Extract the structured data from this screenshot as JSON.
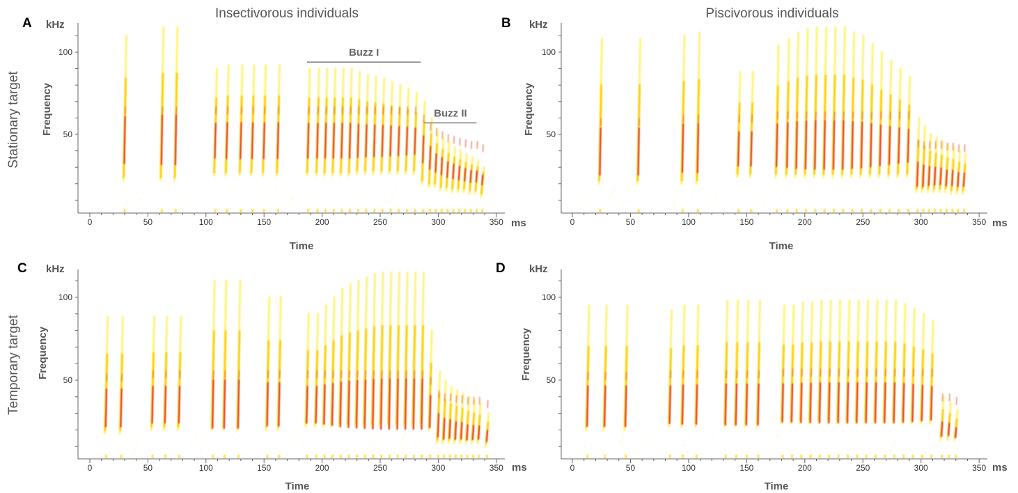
{
  "figure": {
    "column_titles": [
      "Insectivorous individuals",
      "Piscivorous individuals"
    ],
    "row_titles": [
      "Stationary target",
      "Temporary target"
    ]
  },
  "chart_data": [
    {
      "panel": "A",
      "type": "heatmap",
      "subtype": "spectrogram",
      "row": 0,
      "col": 0,
      "xlabel": "Time",
      "xunit": "ms",
      "ylabel": "Frequency",
      "yunit": "kHz",
      "xlim": [
        -10,
        355
      ],
      "ylim": [
        5,
        115
      ],
      "xticks": [
        0,
        50,
        100,
        150,
        200,
        250,
        300,
        350
      ],
      "yticks": [
        50,
        100
      ],
      "calls": [
        {
          "t": 30,
          "f_hi": 110,
          "f_lo": 22,
          "peak": 45
        },
        {
          "t": 62,
          "f_hi": 115,
          "f_lo": 22,
          "peak": 45
        },
        {
          "t": 74,
          "f_hi": 115,
          "f_lo": 22,
          "peak": 45
        },
        {
          "t": 108,
          "f_hi": 90,
          "f_lo": 25,
          "peak": 45
        },
        {
          "t": 118,
          "f_hi": 92,
          "f_lo": 25,
          "peak": 45
        },
        {
          "t": 130,
          "f_hi": 92,
          "f_lo": 25,
          "peak": 45
        },
        {
          "t": 140,
          "f_hi": 92,
          "f_lo": 25,
          "peak": 45
        },
        {
          "t": 150,
          "f_hi": 92,
          "f_lo": 25,
          "peak": 45
        },
        {
          "t": 162,
          "f_hi": 92,
          "f_lo": 25,
          "peak": 45
        },
        {
          "t": 188,
          "f_hi": 90,
          "f_lo": 25,
          "peak": 45
        },
        {
          "t": 196,
          "f_hi": 90,
          "f_lo": 25,
          "peak": 45
        },
        {
          "t": 203,
          "f_hi": 90,
          "f_lo": 25,
          "peak": 45
        },
        {
          "t": 210,
          "f_hi": 90,
          "f_lo": 25,
          "peak": 45
        },
        {
          "t": 217,
          "f_hi": 90,
          "f_lo": 25,
          "peak": 45
        },
        {
          "t": 224,
          "f_hi": 90,
          "f_lo": 25,
          "peak": 45
        },
        {
          "t": 231,
          "f_hi": 88,
          "f_lo": 26,
          "peak": 45
        },
        {
          "t": 238,
          "f_hi": 86,
          "f_lo": 26,
          "peak": 45
        },
        {
          "t": 245,
          "f_hi": 85,
          "f_lo": 26,
          "peak": 45
        },
        {
          "t": 252,
          "f_hi": 84,
          "f_lo": 26,
          "peak": 45
        },
        {
          "t": 259,
          "f_hi": 82,
          "f_lo": 26,
          "peak": 45
        },
        {
          "t": 266,
          "f_hi": 80,
          "f_lo": 26,
          "peak": 45
        },
        {
          "t": 273,
          "f_hi": 78,
          "f_lo": 26,
          "peak": 45
        },
        {
          "t": 280,
          "f_hi": 75,
          "f_lo": 26,
          "peak": 45
        },
        {
          "t": 287,
          "f_hi": 70,
          "f_lo": 20,
          "peak": 40
        },
        {
          "t": 293,
          "f_hi": 60,
          "f_lo": 18,
          "peak": 35
        },
        {
          "t": 298,
          "f_hi": 52,
          "f_lo": 18,
          "peak": 32
        },
        {
          "t": 303,
          "f_hi": 48,
          "f_lo": 16,
          "peak": 30
        },
        {
          "t": 308,
          "f_hi": 45,
          "f_lo": 16,
          "peak": 28
        },
        {
          "t": 313,
          "f_hi": 42,
          "f_lo": 15,
          "peak": 27
        },
        {
          "t": 318,
          "f_hi": 40,
          "f_lo": 15,
          "peak": 26
        },
        {
          "t": 323,
          "f_hi": 38,
          "f_lo": 15,
          "peak": 25
        },
        {
          "t": 328,
          "f_hi": 36,
          "f_lo": 14,
          "peak": 24
        },
        {
          "t": 333,
          "f_hi": 34,
          "f_lo": 14,
          "peak": 24
        },
        {
          "t": 338,
          "f_hi": 30,
          "f_lo": 12,
          "peak": 22
        }
      ],
      "annotations": [
        {
          "label": "Buzz I",
          "x_start": 187,
          "x_end": 285,
          "y": 94
        },
        {
          "label": "Buzz II",
          "x_start": 288,
          "x_end": 333,
          "y": 57
        }
      ]
    },
    {
      "panel": "B",
      "type": "heatmap",
      "subtype": "spectrogram",
      "row": 0,
      "col": 1,
      "xlabel": "Time",
      "xunit": "ms",
      "ylabel": "Frequency",
      "yunit": "kHz",
      "xlim": [
        -10,
        355
      ],
      "ylim": [
        5,
        115
      ],
      "xticks": [
        0,
        50,
        100,
        150,
        200,
        250,
        300,
        350
      ],
      "yticks": [
        50,
        100
      ],
      "calls": [
        {
          "t": 24,
          "f_hi": 108,
          "f_lo": 20,
          "peak": 38
        },
        {
          "t": 57,
          "f_hi": 108,
          "f_lo": 20,
          "peak": 38
        },
        {
          "t": 95,
          "f_hi": 110,
          "f_lo": 20,
          "peak": 40
        },
        {
          "t": 108,
          "f_hi": 112,
          "f_lo": 20,
          "peak": 40
        },
        {
          "t": 143,
          "f_hi": 88,
          "f_lo": 24,
          "peak": 40
        },
        {
          "t": 154,
          "f_hi": 88,
          "f_lo": 24,
          "peak": 40
        },
        {
          "t": 176,
          "f_hi": 104,
          "f_lo": 24,
          "peak": 42
        },
        {
          "t": 185,
          "f_hi": 108,
          "f_lo": 24,
          "peak": 42
        },
        {
          "t": 193,
          "f_hi": 112,
          "f_lo": 24,
          "peak": 42
        },
        {
          "t": 201,
          "f_hi": 114,
          "f_lo": 24,
          "peak": 42
        },
        {
          "t": 209,
          "f_hi": 115,
          "f_lo": 24,
          "peak": 42
        },
        {
          "t": 217,
          "f_hi": 115,
          "f_lo": 24,
          "peak": 42
        },
        {
          "t": 225,
          "f_hi": 115,
          "f_lo": 24,
          "peak": 42
        },
        {
          "t": 233,
          "f_hi": 115,
          "f_lo": 24,
          "peak": 42
        },
        {
          "t": 241,
          "f_hi": 112,
          "f_lo": 24,
          "peak": 42
        },
        {
          "t": 249,
          "f_hi": 110,
          "f_lo": 24,
          "peak": 42
        },
        {
          "t": 257,
          "f_hi": 105,
          "f_lo": 24,
          "peak": 42
        },
        {
          "t": 265,
          "f_hi": 100,
          "f_lo": 24,
          "peak": 42
        },
        {
          "t": 273,
          "f_hi": 95,
          "f_lo": 24,
          "peak": 42
        },
        {
          "t": 281,
          "f_hi": 90,
          "f_lo": 24,
          "peak": 42
        },
        {
          "t": 289,
          "f_hi": 85,
          "f_lo": 24,
          "peak": 42
        },
        {
          "t": 297,
          "f_hi": 60,
          "f_lo": 15,
          "peak": 25
        },
        {
          "t": 302,
          "f_hi": 55,
          "f_lo": 15,
          "peak": 24
        },
        {
          "t": 307,
          "f_hi": 50,
          "f_lo": 15,
          "peak": 24
        },
        {
          "t": 312,
          "f_hi": 48,
          "f_lo": 15,
          "peak": 24
        },
        {
          "t": 317,
          "f_hi": 46,
          "f_lo": 15,
          "peak": 24
        },
        {
          "t": 322,
          "f_hi": 44,
          "f_lo": 15,
          "peak": 23
        },
        {
          "t": 327,
          "f_hi": 42,
          "f_lo": 14,
          "peak": 23
        },
        {
          "t": 332,
          "f_hi": 40,
          "f_lo": 14,
          "peak": 22
        },
        {
          "t": 337,
          "f_hi": 38,
          "f_lo": 14,
          "peak": 22
        }
      ],
      "annotations": []
    },
    {
      "panel": "C",
      "type": "heatmap",
      "subtype": "spectrogram",
      "row": 1,
      "col": 0,
      "xlabel": "Time",
      "xunit": "ms",
      "ylabel": "Frequency",
      "yunit": "kHz",
      "xlim": [
        -10,
        355
      ],
      "ylim": [
        5,
        115
      ],
      "xticks": [
        0,
        50,
        100,
        150,
        200,
        250,
        300,
        350
      ],
      "yticks": [
        50,
        100
      ],
      "calls": [
        {
          "t": 14,
          "f_hi": 88,
          "f_lo": 18,
          "peak": 32
        },
        {
          "t": 27,
          "f_hi": 88,
          "f_lo": 18,
          "peak": 32
        },
        {
          "t": 54,
          "f_hi": 88,
          "f_lo": 20,
          "peak": 34
        },
        {
          "t": 65,
          "f_hi": 88,
          "f_lo": 20,
          "peak": 34
        },
        {
          "t": 77,
          "f_hi": 88,
          "f_lo": 20,
          "peak": 34
        },
        {
          "t": 106,
          "f_hi": 110,
          "f_lo": 20,
          "peak": 34
        },
        {
          "t": 116,
          "f_hi": 110,
          "f_lo": 20,
          "peak": 34
        },
        {
          "t": 128,
          "f_hi": 110,
          "f_lo": 20,
          "peak": 34
        },
        {
          "t": 153,
          "f_hi": 100,
          "f_lo": 20,
          "peak": 34
        },
        {
          "t": 163,
          "f_hi": 100,
          "f_lo": 20,
          "peak": 34
        },
        {
          "t": 187,
          "f_hi": 90,
          "f_lo": 22,
          "peak": 34
        },
        {
          "t": 195,
          "f_hi": 90,
          "f_lo": 22,
          "peak": 34
        },
        {
          "t": 202,
          "f_hi": 95,
          "f_lo": 22,
          "peak": 34
        },
        {
          "t": 209,
          "f_hi": 100,
          "f_lo": 22,
          "peak": 34
        },
        {
          "t": 216,
          "f_hi": 105,
          "f_lo": 22,
          "peak": 34
        },
        {
          "t": 223,
          "f_hi": 108,
          "f_lo": 22,
          "peak": 34
        },
        {
          "t": 230,
          "f_hi": 110,
          "f_lo": 22,
          "peak": 34
        },
        {
          "t": 237,
          "f_hi": 112,
          "f_lo": 22,
          "peak": 34
        },
        {
          "t": 244,
          "f_hi": 114,
          "f_lo": 22,
          "peak": 34
        },
        {
          "t": 251,
          "f_hi": 115,
          "f_lo": 22,
          "peak": 34
        },
        {
          "t": 258,
          "f_hi": 115,
          "f_lo": 22,
          "peak": 34
        },
        {
          "t": 265,
          "f_hi": 115,
          "f_lo": 22,
          "peak": 34
        },
        {
          "t": 272,
          "f_hi": 115,
          "f_lo": 22,
          "peak": 34
        },
        {
          "t": 279,
          "f_hi": 115,
          "f_lo": 22,
          "peak": 34
        },
        {
          "t": 286,
          "f_hi": 115,
          "f_lo": 22,
          "peak": 34
        },
        {
          "t": 293,
          "f_hi": 80,
          "f_lo": 20,
          "peak": 30
        },
        {
          "t": 300,
          "f_hi": 55,
          "f_lo": 12,
          "peak": 22
        },
        {
          "t": 305,
          "f_hi": 50,
          "f_lo": 12,
          "peak": 20
        },
        {
          "t": 310,
          "f_hi": 46,
          "f_lo": 12,
          "peak": 20
        },
        {
          "t": 315,
          "f_hi": 44,
          "f_lo": 12,
          "peak": 19
        },
        {
          "t": 320,
          "f_hi": 42,
          "f_lo": 12,
          "peak": 19
        },
        {
          "t": 325,
          "f_hi": 40,
          "f_lo": 12,
          "peak": 18
        },
        {
          "t": 330,
          "f_hi": 38,
          "f_lo": 12,
          "peak": 18
        },
        {
          "t": 335,
          "f_hi": 36,
          "f_lo": 12,
          "peak": 18
        },
        {
          "t": 342,
          "f_hi": 30,
          "f_lo": 10,
          "peak": 16
        }
      ],
      "annotations": []
    },
    {
      "panel": "D",
      "type": "heatmap",
      "subtype": "spectrogram",
      "row": 1,
      "col": 1,
      "xlabel": "Time",
      "xunit": "ms",
      "ylabel": "Frequency",
      "yunit": "kHz",
      "xlim": [
        -10,
        355
      ],
      "ylim": [
        5,
        115
      ],
      "xticks": [
        0,
        50,
        100,
        150,
        200,
        250,
        300,
        350
      ],
      "yticks": [
        50,
        100
      ],
      "calls": [
        {
          "t": 13,
          "f_hi": 95,
          "f_lo": 20,
          "peak": 33
        },
        {
          "t": 28,
          "f_hi": 95,
          "f_lo": 20,
          "peak": 33
        },
        {
          "t": 46,
          "f_hi": 95,
          "f_lo": 20,
          "peak": 33
        },
        {
          "t": 84,
          "f_hi": 92,
          "f_lo": 22,
          "peak": 34
        },
        {
          "t": 95,
          "f_hi": 95,
          "f_lo": 22,
          "peak": 34
        },
        {
          "t": 107,
          "f_hi": 95,
          "f_lo": 22,
          "peak": 34
        },
        {
          "t": 132,
          "f_hi": 98,
          "f_lo": 22,
          "peak": 34
        },
        {
          "t": 141,
          "f_hi": 98,
          "f_lo": 22,
          "peak": 34
        },
        {
          "t": 150,
          "f_hi": 98,
          "f_lo": 22,
          "peak": 34
        },
        {
          "t": 160,
          "f_hi": 98,
          "f_lo": 22,
          "peak": 34
        },
        {
          "t": 181,
          "f_hi": 95,
          "f_lo": 24,
          "peak": 35
        },
        {
          "t": 189,
          "f_hi": 95,
          "f_lo": 24,
          "peak": 35
        },
        {
          "t": 197,
          "f_hi": 97,
          "f_lo": 24,
          "peak": 35
        },
        {
          "t": 205,
          "f_hi": 97,
          "f_lo": 24,
          "peak": 35
        },
        {
          "t": 213,
          "f_hi": 98,
          "f_lo": 24,
          "peak": 35
        },
        {
          "t": 221,
          "f_hi": 98,
          "f_lo": 24,
          "peak": 35
        },
        {
          "t": 229,
          "f_hi": 98,
          "f_lo": 24,
          "peak": 35
        },
        {
          "t": 237,
          "f_hi": 98,
          "f_lo": 24,
          "peak": 35
        },
        {
          "t": 245,
          "f_hi": 98,
          "f_lo": 24,
          "peak": 35
        },
        {
          "t": 253,
          "f_hi": 98,
          "f_lo": 24,
          "peak": 35
        },
        {
          "t": 261,
          "f_hi": 98,
          "f_lo": 24,
          "peak": 35
        },
        {
          "t": 269,
          "f_hi": 98,
          "f_lo": 24,
          "peak": 35
        },
        {
          "t": 277,
          "f_hi": 98,
          "f_lo": 24,
          "peak": 35
        },
        {
          "t": 285,
          "f_hi": 96,
          "f_lo": 24,
          "peak": 35
        },
        {
          "t": 293,
          "f_hi": 93,
          "f_lo": 24,
          "peak": 35
        },
        {
          "t": 301,
          "f_hi": 90,
          "f_lo": 24,
          "peak": 35
        },
        {
          "t": 309,
          "f_hi": 86,
          "f_lo": 24,
          "peak": 35
        },
        {
          "t": 318,
          "f_hi": 40,
          "f_lo": 14,
          "peak": 20
        },
        {
          "t": 324,
          "f_hi": 36,
          "f_lo": 14,
          "peak": 20
        },
        {
          "t": 330,
          "f_hi": 32,
          "f_lo": 14,
          "peak": 18
        }
      ],
      "annotations": []
    }
  ],
  "colors": {
    "axis": "#666666",
    "low": "#fff26a",
    "mid": "#ffd000",
    "high": "#e8301c",
    "peak": "#2a2fc4",
    "noise": "#fff8b0",
    "annotation_line": "#888888"
  }
}
